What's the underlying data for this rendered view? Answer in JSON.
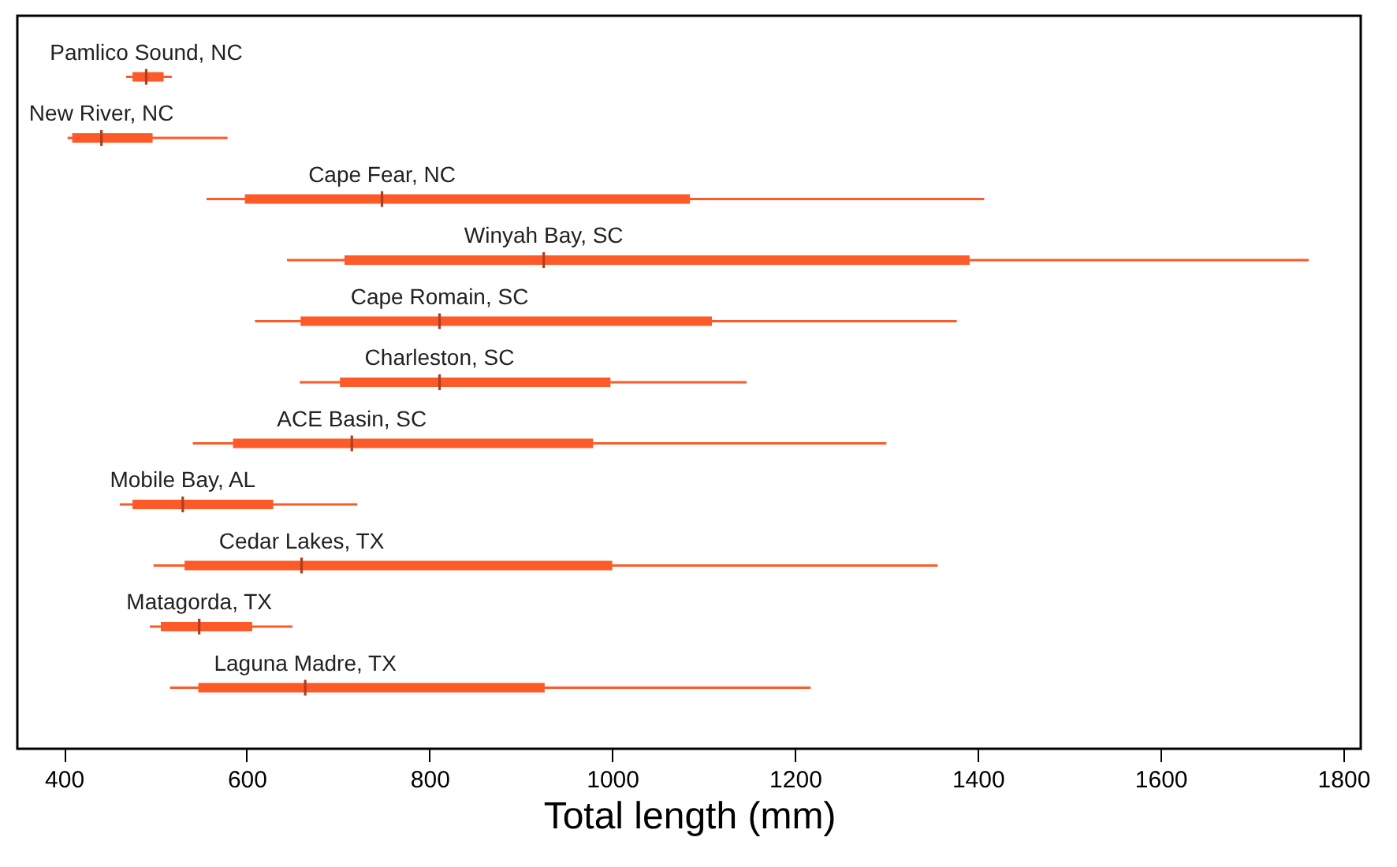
{
  "chart_data": {
    "type": "box",
    "orientation": "horizontal",
    "xlabel": "Total length (mm)",
    "categories": [
      "Pamlico Sound, NC",
      "New River, NC",
      "Cape Fear, NC",
      "Winyah Bay, SC",
      "Cape Romain, SC",
      "Charleston, SC",
      "ACE Basin, SC",
      "Mobile Bay, AL",
      "Cedar Lakes, TX",
      "Matagorda, TX",
      "Laguna Madre, TX"
    ],
    "series": [
      {
        "color": "#fc5a28",
        "boxes": [
          {
            "low": 468,
            "q1": 475,
            "median": 490,
            "q3": 509,
            "high": 518
          },
          {
            "low": 404,
            "q1": 409,
            "median": 441,
            "q3": 497,
            "high": 579
          },
          {
            "low": 556,
            "q1": 598,
            "median": 748,
            "q3": 1085,
            "high": 1407
          },
          {
            "low": 644,
            "q1": 707,
            "median": 925,
            "q3": 1391,
            "high": 1762
          },
          {
            "low": 609,
            "q1": 659,
            "median": 811,
            "q3": 1109,
            "high": 1377
          },
          {
            "low": 658,
            "q1": 702,
            "median": 811,
            "q3": 998,
            "high": 1147
          },
          {
            "low": 541,
            "q1": 585,
            "median": 715,
            "q3": 979,
            "high": 1300
          },
          {
            "low": 461,
            "q1": 475,
            "median": 530,
            "q3": 629,
            "high": 721
          },
          {
            "low": 498,
            "q1": 532,
            "median": 660,
            "q3": 1000,
            "high": 1356
          },
          {
            "low": 494,
            "q1": 506,
            "median": 548,
            "q3": 606,
            "high": 650
          },
          {
            "low": 516,
            "q1": 547,
            "median": 664,
            "q3": 926,
            "high": 1217
          }
        ]
      }
    ],
    "xlim": [
      349,
      1819
    ],
    "xticks": [
      400,
      600,
      800,
      1000,
      1200,
      1400,
      1600,
      1800
    ],
    "tick_labels": "x",
    "grid": false
  }
}
